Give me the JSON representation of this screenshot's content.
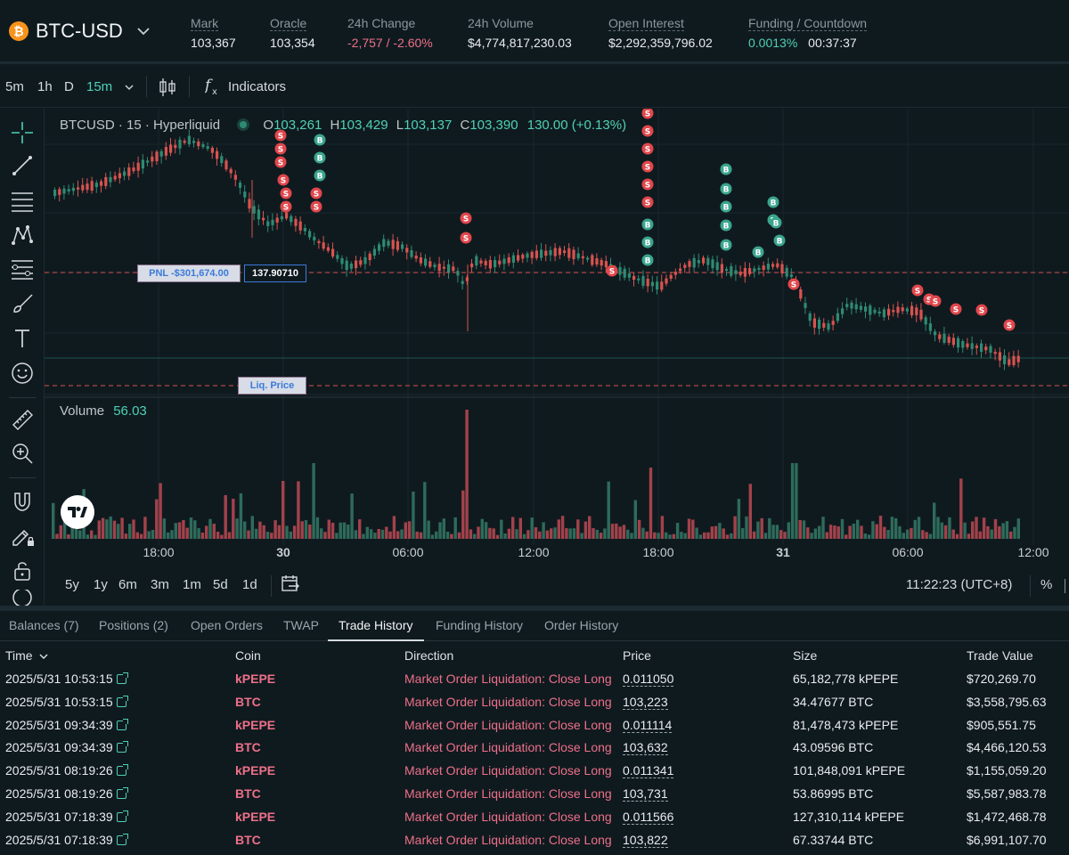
{
  "header": {
    "symbol": "BTC-USD",
    "symbol_icon": "btc-icon",
    "stats": [
      {
        "label": "Mark",
        "value": "103,367"
      },
      {
        "label": "Oracle",
        "value": "103,354"
      },
      {
        "label": "24h Change",
        "value": "-2,757 / -2.60%"
      },
      {
        "label": "24h Volume",
        "value": "$4,774,817,230.03"
      },
      {
        "label": "Open Interest",
        "value": "$2,292,359,796.02"
      },
      {
        "label": "Funding / Countdown",
        "value": "0.0013%",
        "value2": "00:37:37"
      }
    ]
  },
  "toolbar": {
    "timeframes": [
      "5m",
      "1h",
      "D",
      "15m"
    ],
    "active_timeframe": "15m",
    "indicators_label": "Indicators"
  },
  "chart": {
    "legend": {
      "pair": "BTCUSD · 15 · Hyperliquid",
      "o_label": "O",
      "o": "103,261",
      "h_label": "H",
      "h": "103,429",
      "l_label": "L",
      "l": "103,137",
      "c_label": "C",
      "c": "103,390",
      "change": "130.00 (+0.13%)"
    },
    "pnl_label": "PNL -$301,674.00",
    "position_size": "137.90710",
    "liq_label": "Liq. Price",
    "volume_label": "Volume",
    "volume_value": "56.03",
    "time_ticks": [
      "18:00",
      "30",
      "06:00",
      "12:00",
      "18:00",
      "31",
      "06:00",
      "12:00"
    ],
    "marker_sell": "S",
    "marker_buy": "B",
    "colors": {
      "up": "#2e8b72",
      "down": "#d9534f",
      "accent": "#4fd1b5"
    }
  },
  "range_bar": {
    "ranges": [
      "5y",
      "1y",
      "6m",
      "3m",
      "1m",
      "5d",
      "1d"
    ],
    "clock": "11:22:23 (UTC+8)",
    "pct": "%"
  },
  "tabs": {
    "items": [
      "Balances (7)",
      "Positions (2)",
      "Open Orders",
      "TWAP",
      "Trade History",
      "Funding History",
      "Order History"
    ],
    "active": "Trade History"
  },
  "table": {
    "headers": [
      "Time",
      "Coin",
      "Direction",
      "Price",
      "Size",
      "Trade Value"
    ],
    "rows": [
      {
        "time": "2025/5/31 10:53:15",
        "coin": "kPEPE",
        "direction": "Market Order Liquidation: Close Long",
        "price": "0.011050",
        "size": "65,182,778 kPEPE",
        "value": "$720,269.70"
      },
      {
        "time": "2025/5/31 10:53:15",
        "coin": "BTC",
        "direction": "Market Order Liquidation: Close Long",
        "price": "103,223",
        "size": "34.47677 BTC",
        "value": "$3,558,795.63"
      },
      {
        "time": "2025/5/31 09:34:39",
        "coin": "kPEPE",
        "direction": "Market Order Liquidation: Close Long",
        "price": "0.011114",
        "size": "81,478,473 kPEPE",
        "value": "$905,551.75"
      },
      {
        "time": "2025/5/31 09:34:39",
        "coin": "BTC",
        "direction": "Market Order Liquidation: Close Long",
        "price": "103,632",
        "size": "43.09596 BTC",
        "value": "$4,466,120.53"
      },
      {
        "time": "2025/5/31 08:19:26",
        "coin": "kPEPE",
        "direction": "Market Order Liquidation: Close Long",
        "price": "0.011341",
        "size": "101,848,091 kPEPE",
        "value": "$1,155,059.20"
      },
      {
        "time": "2025/5/31 08:19:26",
        "coin": "BTC",
        "direction": "Market Order Liquidation: Close Long",
        "price": "103,731",
        "size": "53.86995 BTC",
        "value": "$5,587,983.78"
      },
      {
        "time": "2025/5/31 07:18:39",
        "coin": "kPEPE",
        "direction": "Market Order Liquidation: Close Long",
        "price": "0.011566",
        "size": "127,310,114 kPEPE",
        "value": "$1,472,468.78"
      },
      {
        "time": "2025/5/31 07:18:39",
        "coin": "BTC",
        "direction": "Market Order Liquidation: Close Long",
        "price": "103,822",
        "size": "67.33744 BTC",
        "value": "$6,991,107.70"
      }
    ]
  }
}
